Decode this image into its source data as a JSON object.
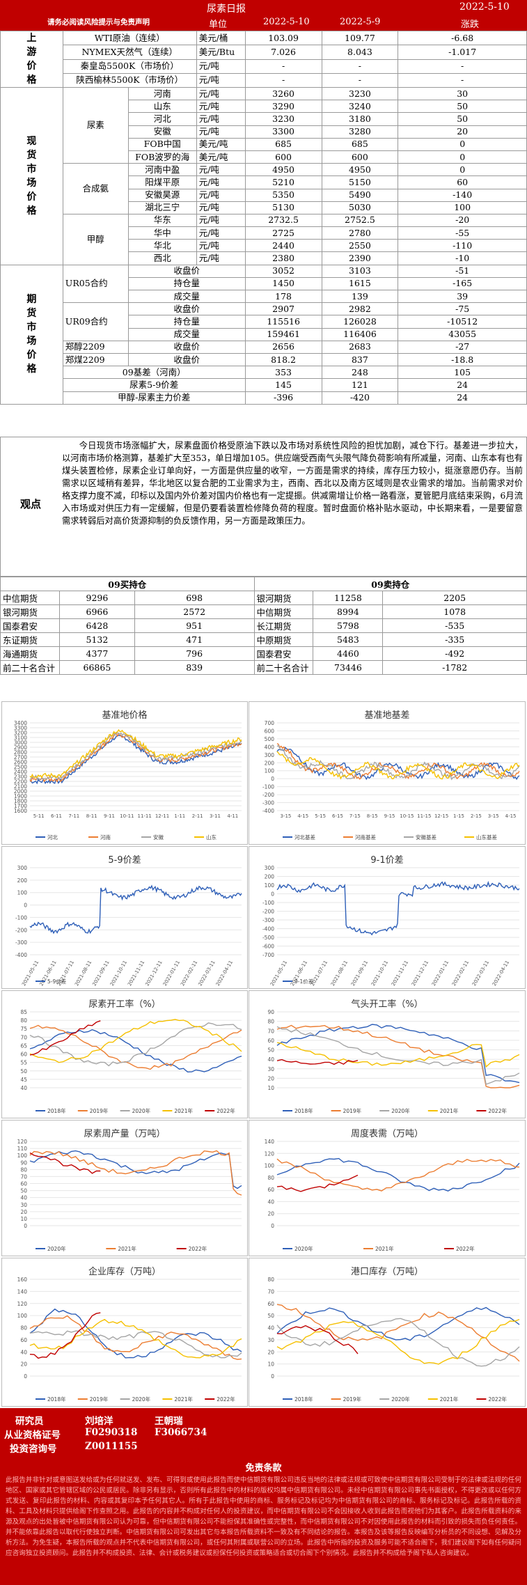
{
  "header": {
    "title": "尿素日报",
    "date": "2022-5-10"
  },
  "columns": {
    "notice": "请务必阅读风险提示与免责声明",
    "unit": "单位",
    "d1": "2022-5-10",
    "d2": "2022-5-9",
    "chg": "涨跌"
  },
  "upstream": {
    "label": "上游价格",
    "rows": [
      {
        "name": "WTI原油（连续）",
        "unit": "美元/桶",
        "v1": "103.09",
        "v2": "109.77",
        "chg": "-6.68"
      },
      {
        "name": "NYMEX天然气（连续）",
        "unit": "美元/Btu",
        "v1": "7.026",
        "v2": "8.043",
        "chg": "-1.017"
      },
      {
        "name": "秦皇岛5500K（市场价）",
        "unit": "元/吨",
        "v1": "-",
        "v2": "-",
        "chg": "-"
      },
      {
        "name": "陕西榆林5500K（市场价）",
        "unit": "元/吨",
        "v1": "-",
        "v2": "-",
        "chg": "-"
      }
    ]
  },
  "spot": {
    "label": "现货市场价格",
    "groups": [
      {
        "name": "尿素",
        "rows": [
          {
            "name": "河南",
            "unit": "元/吨",
            "v1": "3260",
            "v2": "3230",
            "chg": "30"
          },
          {
            "name": "山东",
            "unit": "元/吨",
            "v1": "3290",
            "v2": "3240",
            "chg": "50"
          },
          {
            "name": "河北",
            "unit": "元/吨",
            "v1": "3230",
            "v2": "3180",
            "chg": "50"
          },
          {
            "name": "安徽",
            "unit": "元/吨",
            "v1": "3300",
            "v2": "3280",
            "chg": "20"
          },
          {
            "name": "FOB中国",
            "unit": "美元/吨",
            "v1": "685",
            "v2": "685",
            "chg": "0"
          },
          {
            "name": "FOB波罗的海",
            "unit": "美元/吨",
            "v1": "600",
            "v2": "600",
            "chg": "0"
          }
        ]
      },
      {
        "name": "合成氨",
        "rows": [
          {
            "name": "河南中盈",
            "unit": "元/吨",
            "v1": "4950",
            "v2": "4950",
            "chg": "0"
          },
          {
            "name": "阳煤平原",
            "unit": "元/吨",
            "v1": "5210",
            "v2": "5150",
            "chg": "60"
          },
          {
            "name": "安徽昊源",
            "unit": "元/吨",
            "v1": "5350",
            "v2": "5490",
            "chg": "-140"
          },
          {
            "name": "湖北三宁",
            "unit": "元/吨",
            "v1": "5130",
            "v2": "5030",
            "chg": "100"
          }
        ]
      },
      {
        "name": "甲醇",
        "rows": [
          {
            "name": "华东",
            "unit": "元/吨",
            "v1": "2732.5",
            "v2": "2752.5",
            "chg": "-20"
          },
          {
            "name": "华中",
            "unit": "元/吨",
            "v1": "2725",
            "v2": "2780",
            "chg": "-55"
          },
          {
            "name": "华北",
            "unit": "元/吨",
            "v1": "2440",
            "v2": "2550",
            "chg": "-110"
          },
          {
            "name": "西北",
            "unit": "元/吨",
            "v1": "2380",
            "v2": "2390",
            "chg": "-10"
          }
        ]
      }
    ]
  },
  "futures": {
    "label": "期货市场价格",
    "rows": [
      {
        "g": "UR05合约",
        "name": "收盘价",
        "unit": "",
        "v1": "3052",
        "v2": "3103",
        "chg": "-51"
      },
      {
        "g": "",
        "name": "持仓量",
        "unit": "",
        "v1": "1450",
        "v2": "1615",
        "chg": "-165"
      },
      {
        "g": "",
        "name": "成交量",
        "unit": "",
        "v1": "178",
        "v2": "139",
        "chg": "39"
      },
      {
        "g": "UR09合约",
        "name": "收盘价",
        "unit": "",
        "v1": "2907",
        "v2": "2982",
        "chg": "-75"
      },
      {
        "g": "",
        "name": "持仓量",
        "unit": "",
        "v1": "115516",
        "v2": "126028",
        "chg": "-10512"
      },
      {
        "g": "",
        "name": "成交量",
        "unit": "",
        "v1": "159461",
        "v2": "116406",
        "chg": "43055"
      },
      {
        "g": "郑醇2209",
        "name": "收盘价",
        "unit": "",
        "v1": "2656",
        "v2": "2683",
        "chg": "-27"
      },
      {
        "g": "郑煤2209",
        "name": "收盘价",
        "unit": "",
        "v1": "818.2",
        "v2": "837",
        "chg": "-18.8"
      },
      {
        "g": "",
        "name": "09基差（河南）",
        "unit": "",
        "v1": "353",
        "v2": "248",
        "chg": "105"
      },
      {
        "g": "",
        "name": "尿素5-9价差",
        "unit": "",
        "v1": "145",
        "v2": "121",
        "chg": "24"
      },
      {
        "g": "",
        "name": "甲醇-尿素主力价差",
        "unit": "",
        "v1": "-396",
        "v2": "-420",
        "chg": "24"
      }
    ]
  },
  "observation": {
    "label": "观点",
    "text": "今日现货市场涨幅扩大，尿素盘面价格受原油下跌以及市场对系统性风险的担忧加剧，减仓下行。基差进一步拉大，以河南市场价格测算，基差扩大至353，单日增加105。供应端受西南气头限气降负荷影响有所减量，河南、山东本有也有煤头装置检修，尿素企业订单向好，一方面是供应量的收窄，一方面是需求的持续，库存压力较小，挺涨意愿仍存。当前需求以区域稍有差异，华北地区以复合肥的工业需求为主，西南、西北以及南方区域则是农业需求的增加。当前需求对价格支撑力度不减，印标以及国内外价差对国内价格也有一定提振。供减需增让价格一路看涨，夏管肥月底结束采购，6月流入市场或对供压力有一定缓解，但是仍要看装置检修降负荷的程度。暂时盘面价格补贴水驱动，中长期来看，一是要留意需求转弱后对高价货源抑制的负反馈作用，另一方面是政策压力。"
  },
  "positions": {
    "long_title": "09买持仓",
    "short_title": "09卖持仓",
    "long": [
      {
        "name": "中信期货",
        "v": "9296",
        "chg": "698"
      },
      {
        "name": "银河期货",
        "v": "6966",
        "chg": "2572"
      },
      {
        "name": "国泰君安",
        "v": "6428",
        "chg": "951"
      },
      {
        "name": "东证期货",
        "v": "5132",
        "chg": "471"
      },
      {
        "name": "海通期货",
        "v": "4377",
        "chg": "796"
      },
      {
        "name": "前二十名合计",
        "v": "66865",
        "chg": "839"
      }
    ],
    "short": [
      {
        "name": "银河期货",
        "v": "11258",
        "chg": "2205"
      },
      {
        "name": "中信期货",
        "v": "8994",
        "chg": "1078"
      },
      {
        "name": "长江期货",
        "v": "5798",
        "chg": "-535"
      },
      {
        "name": "中原期货",
        "v": "5483",
        "chg": "-335"
      },
      {
        "name": "国泰君安",
        "v": "4460",
        "chg": "-492"
      },
      {
        "name": "前二十名合计",
        "v": "73446",
        "chg": "-1782"
      }
    ]
  },
  "chart_data": [
    {
      "type": "line",
      "title": "基准地价格",
      "ylim": [
        1600,
        3400
      ],
      "yticks": [
        "1600",
        "1700",
        "1800",
        "1900",
        "2000",
        "2100",
        "2200",
        "2300",
        "2400",
        "2500",
        "2600",
        "2700",
        "2800",
        "2900",
        "3000",
        "3100",
        "3200",
        "3300",
        "3400"
      ],
      "xticks": [
        "5-11",
        "6-11",
        "7-11",
        "8-11",
        "9-11",
        "10-11",
        "11-11",
        "12-11",
        "1-11",
        "2-11",
        "3-11",
        "4-11"
      ],
      "series": [
        {
          "name": "河北",
          "color": "#2e5fb8"
        },
        {
          "name": "河南",
          "color": "#ec7d31"
        },
        {
          "name": "安徽",
          "color": "#a5a5a5"
        },
        {
          "name": "山东",
          "color": "#f5c000"
        }
      ]
    },
    {
      "type": "line",
      "title": "基准地基差",
      "ylim": [
        -400,
        700
      ],
      "yticks": [
        "-400",
        "-300",
        "-200",
        "-100",
        "0",
        "100",
        "200",
        "300",
        "400",
        "500",
        "600",
        "700"
      ],
      "xticks": [
        "3-15",
        "4-15",
        "5-15",
        "6-15",
        "7-15",
        "8-15",
        "9-15",
        "10-15",
        "11-15",
        "12-15",
        "1-15",
        "2-15",
        "3-15",
        "4-15"
      ],
      "series": [
        {
          "name": "河北基差",
          "color": "#2e5fb8"
        },
        {
          "name": "河南基差",
          "color": "#ec7d31"
        },
        {
          "name": "安徽基差",
          "color": "#a5a5a5"
        },
        {
          "name": "山东基差",
          "color": "#f5c000"
        }
      ]
    },
    {
      "type": "line",
      "title": "5-9价差",
      "ylim": [
        -400,
        300
      ],
      "yticks": [
        "-400",
        "-300",
        "-200",
        "-100",
        "0",
        "100",
        "200",
        "300"
      ],
      "xticks": [
        "2021-05-11",
        "2021-06-11",
        "2021-07-11",
        "2021-08-11",
        "2021-09-11",
        "2021-10-11",
        "2021-11-11",
        "2021-12-11",
        "2022-01-11",
        "2022-02-11",
        "2022-03-11",
        "2022-04-11"
      ],
      "series": [
        {
          "name": "5-9价差",
          "color": "#2e5fb8"
        }
      ]
    },
    {
      "type": "line",
      "title": "9-1价差",
      "ylim": [
        -700,
        300
      ],
      "yticks": [
        "-700",
        "-600",
        "-500",
        "-400",
        "-300",
        "-200",
        "-100",
        "0",
        "100",
        "200",
        "300"
      ],
      "xticks": [
        "2021-05-11",
        "2021-06-11",
        "2021-07-11",
        "2021-08-11",
        "2021-09-11",
        "2021-10-11",
        "2021-11-11",
        "2021-12-11",
        "2022-01-11",
        "2022-02-11",
        "2022-03-11",
        "2022-04-11"
      ],
      "series": [
        {
          "name": "9-1价差",
          "color": "#2e5fb8"
        }
      ]
    },
    {
      "type": "line",
      "title": "尿素开工率（%）",
      "ylim": [
        40,
        85
      ],
      "yticks": [
        "40",
        "45",
        "50",
        "55",
        "60",
        "65",
        "70",
        "75",
        "80",
        "85"
      ],
      "series": [
        {
          "name": "2018年",
          "color": "#2e5fb8"
        },
        {
          "name": "2019年",
          "color": "#ec7d31"
        },
        {
          "name": "2020年",
          "color": "#a5a5a5"
        },
        {
          "name": "2021年",
          "color": "#f5c000"
        },
        {
          "name": "2022年",
          "color": "#c00000"
        }
      ]
    },
    {
      "type": "line",
      "title": "气头开工率（%）",
      "ylim": [
        10,
        90
      ],
      "yticks": [
        "10",
        "20",
        "30",
        "40",
        "50",
        "60",
        "70",
        "80",
        "90"
      ],
      "series": [
        {
          "name": "2018年",
          "color": "#2e5fb8"
        },
        {
          "name": "2019年",
          "color": "#ec7d31"
        },
        {
          "name": "2020年",
          "color": "#a5a5a5"
        },
        {
          "name": "2021年",
          "color": "#f5c000"
        },
        {
          "name": "2022年",
          "color": "#c00000"
        }
      ]
    },
    {
      "type": "line",
      "title": "尿素周产量（万吨）",
      "ylim": [
        0,
        120
      ],
      "yticks": [
        "0",
        "10",
        "20",
        "30",
        "40",
        "50",
        "60",
        "70",
        "80",
        "90",
        "100",
        "110",
        "120"
      ],
      "series": [
        {
          "name": "2020年",
          "color": "#2e5fb8"
        },
        {
          "name": "2021年",
          "color": "#ec7d31"
        },
        {
          "name": "2022年",
          "color": "#c00000"
        }
      ]
    },
    {
      "type": "line",
      "title": "周度表需（万吨）",
      "ylim": [
        0,
        140
      ],
      "yticks": [
        "0",
        "20",
        "40",
        "60",
        "80",
        "100",
        "120",
        "140"
      ],
      "series": [
        {
          "name": "2020年",
          "color": "#2e5fb8"
        },
        {
          "name": "2021年",
          "color": "#ec7d31"
        },
        {
          "name": "2022年",
          "color": "#c00000"
        }
      ]
    },
    {
      "type": "line",
      "title": "企业库存（万吨）",
      "ylim": [
        0,
        160
      ],
      "yticks": [
        "0",
        "20",
        "40",
        "60",
        "80",
        "100",
        "120",
        "140",
        "160"
      ],
      "series": [
        {
          "name": "2018年",
          "color": "#2e5fb8"
        },
        {
          "name": "2019年",
          "color": "#ec7d31"
        },
        {
          "name": "2020年",
          "color": "#a5a5a5"
        },
        {
          "name": "2021年",
          "color": "#f5c000"
        },
        {
          "name": "2022年",
          "color": "#c00000"
        }
      ]
    },
    {
      "type": "line",
      "title": "港口库存（万吨）",
      "ylim": [
        0,
        80
      ],
      "yticks": [
        "0",
        "10",
        "20",
        "30",
        "40",
        "50",
        "60",
        "70",
        "80"
      ],
      "series": [
        {
          "name": "2018年",
          "color": "#2e5fb8"
        },
        {
          "name": "2019年",
          "color": "#ec7d31"
        },
        {
          "name": "2020年",
          "color": "#a5a5a5"
        },
        {
          "name": "2021年",
          "color": "#f5c000"
        },
        {
          "name": "2022年",
          "color": "#c00000"
        }
      ]
    }
  ],
  "footer": {
    "researcher_label": "研究员",
    "researcher1": "刘培洋",
    "researcher2": "王朝瑞",
    "license_label": "从业资格证号",
    "license1": "F0290318",
    "license2": "F3066734",
    "consult_label": "投资咨询号",
    "consult1": "Z0011155",
    "disclaimer_title": "免责条款",
    "disclaimer": "此报告并非针对或意图送发给或为任何就送发、发布、可得到或使用此报告而使中信期货有限公司违反当地的法律或法规或可致使中信期货有限公司受制于的法律或法规的任何地区、国家或其它管辖区域的公民或居民。除非另有显示，否则所有此报告中的材料的版权均属中信期货有限公司。未经中信期货有限公司事先书面授权，不得更改或以任何方式发送、复印此报告的材料、内容或其复印本予任何其它人。所有于此报告中使用的商标、服务标记及标记均为中信期货有限公司的商标、服务标记及标记。此报告所载的资料、工具及材料只提供给阁下作查照之用。此报告的内容并不构成对任何人的投资建议，而中信期货有限公司不会因接收人收到此报告而视他们为其客户。此报告所载资料的来源及观点的出处皆被中信期货有限公司认为可靠，但中信期货有限公司不能担保其准确性或完整性，而中信期货有限公司不对因使用此报告的材料而引致的损失而负任何责任。并不能依靠此报告以取代行使独立判断。中信期货有限公司可发出其它与本报告所载资料不一致及有不同结论的报告。本报告及该等报告反映编写分析员的不同设想、见解及分析方法。为免生疑，本报告所载的观点并不代表中信期货有限公司，或任何其附属或联营公司的立场。此报告中所指的投资及服务可能不适合阁下，我们建议阁下如有任何疑问应咨询独立投资顾问。此报告并不构成投资、法律、会计或税务建议或担保任何投资或策略适合或切合阁下个别情况。此报告并不构成给予阁下私人咨询建议。"
  }
}
